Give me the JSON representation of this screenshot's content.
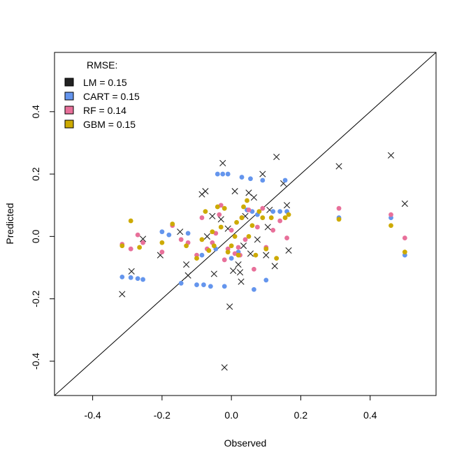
{
  "chart_data": {
    "type": "scatter",
    "title": "",
    "xlabel": "Observed",
    "ylabel": "Predicted",
    "xlim": [
      -0.51,
      0.59
    ],
    "ylim": [
      -0.51,
      0.59
    ],
    "x_ticks": [
      -0.4,
      -0.2,
      0.0,
      0.2,
      0.4
    ],
    "x_tick_labels": [
      "-0.4",
      "-0.2",
      "0.0",
      "0.2",
      "0.4"
    ],
    "y_ticks": [
      -0.4,
      -0.2,
      0.0,
      0.2,
      0.4
    ],
    "y_tick_labels": [
      "-0.4",
      "-0.2",
      "0.0",
      "0.2",
      "0.4"
    ],
    "reference_line": "y = x",
    "legend": {
      "title": "RMSE:",
      "placement": "top-left",
      "entries": [
        {
          "label": "LM =  0.15",
          "color": "#222222"
        },
        {
          "label": "CART =  0.15",
          "color": "#6495ED"
        },
        {
          "label": "RF =  0.14",
          "color": "#E8709A"
        },
        {
          "label": "GBM =  0.15",
          "color": "#CDAA00"
        }
      ]
    },
    "series": [
      {
        "name": "LM",
        "marker": "x",
        "color": "#222222",
        "points": [
          [
            -0.315,
            -0.185
          ],
          [
            -0.288,
            -0.112
          ],
          [
            -0.255,
            -0.008
          ],
          [
            -0.205,
            -0.06
          ],
          [
            -0.148,
            0.015
          ],
          [
            -0.13,
            -0.09
          ],
          [
            -0.125,
            -0.125
          ],
          [
            -0.085,
            0.135
          ],
          [
            -0.075,
            0.145
          ],
          [
            -0.055,
            0.065
          ],
          [
            -0.05,
            -0.12
          ],
          [
            -0.03,
            0.055
          ],
          [
            -0.025,
            0.235
          ],
          [
            -0.02,
            -0.42
          ],
          [
            -0.01,
            0.025
          ],
          [
            -0.005,
            -0.225
          ],
          [
            0.005,
            -0.11
          ],
          [
            0.01,
            0.145
          ],
          [
            0.025,
            -0.115
          ],
          [
            0.028,
            -0.145
          ],
          [
            0.035,
            -0.03
          ],
          [
            0.04,
            0.065
          ],
          [
            0.05,
            0.14
          ],
          [
            0.055,
            -0.055
          ],
          [
            0.065,
            0.125
          ],
          [
            0.09,
            0.2
          ],
          [
            0.1,
            -0.06
          ],
          [
            0.11,
            0.085
          ],
          [
            0.125,
            -0.095
          ],
          [
            0.13,
            0.255
          ],
          [
            0.15,
            0.17
          ],
          [
            0.16,
            0.1
          ],
          [
            0.165,
            -0.045
          ],
          [
            0.31,
            0.225
          ],
          [
            0.46,
            0.26
          ],
          [
            0.5,
            0.105
          ],
          [
            -0.07,
            0.0
          ],
          [
            0.02,
            -0.09
          ],
          [
            0.075,
            -0.01
          ],
          [
            0.105,
            0.03
          ]
        ]
      },
      {
        "name": "CART",
        "marker": "dot",
        "color": "#6495ED",
        "points": [
          [
            -0.315,
            -0.13
          ],
          [
            -0.29,
            -0.132
          ],
          [
            -0.27,
            -0.135
          ],
          [
            -0.255,
            -0.138
          ],
          [
            -0.2,
            0.015
          ],
          [
            -0.18,
            0.005
          ],
          [
            -0.145,
            -0.15
          ],
          [
            -0.125,
            0.01
          ],
          [
            -0.1,
            -0.155
          ],
          [
            -0.08,
            -0.155
          ],
          [
            -0.06,
            -0.16
          ],
          [
            -0.085,
            -0.06
          ],
          [
            -0.04,
            0.2
          ],
          [
            -0.025,
            0.2
          ],
          [
            -0.01,
            0.2
          ],
          [
            -0.02,
            -0.16
          ],
          [
            0.0,
            -0.07
          ],
          [
            0.03,
            0.19
          ],
          [
            0.055,
            0.185
          ],
          [
            0.06,
            0.08
          ],
          [
            0.065,
            -0.17
          ],
          [
            0.075,
            0.07
          ],
          [
            0.09,
            0.18
          ],
          [
            0.1,
            -0.14
          ],
          [
            0.12,
            0.08
          ],
          [
            0.14,
            0.08
          ],
          [
            0.155,
            0.18
          ],
          [
            0.16,
            0.08
          ],
          [
            0.31,
            0.06
          ],
          [
            0.46,
            0.06
          ],
          [
            0.5,
            -0.06
          ],
          [
            -0.045,
            -0.04
          ],
          [
            0.02,
            -0.05
          ],
          [
            0.045,
            0.085
          ]
        ]
      },
      {
        "name": "RF",
        "marker": "dot",
        "color": "#E8709A",
        "points": [
          [
            -0.315,
            -0.025
          ],
          [
            -0.29,
            -0.04
          ],
          [
            -0.27,
            0.005
          ],
          [
            -0.255,
            -0.02
          ],
          [
            -0.2,
            -0.05
          ],
          [
            -0.17,
            0.035
          ],
          [
            -0.145,
            -0.01
          ],
          [
            -0.125,
            -0.02
          ],
          [
            -0.1,
            -0.06
          ],
          [
            -0.085,
            0.06
          ],
          [
            -0.07,
            -0.04
          ],
          [
            -0.055,
            -0.02
          ],
          [
            -0.045,
            0.01
          ],
          [
            -0.03,
            0.1
          ],
          [
            -0.02,
            -0.075
          ],
          [
            -0.01,
            -0.04
          ],
          [
            0.0,
            0.02
          ],
          [
            0.01,
            -0.055
          ],
          [
            0.02,
            -0.035
          ],
          [
            0.03,
            0.06
          ],
          [
            0.04,
            -0.01
          ],
          [
            0.05,
            0.085
          ],
          [
            0.065,
            -0.105
          ],
          [
            0.075,
            0.03
          ],
          [
            0.09,
            0.09
          ],
          [
            0.1,
            -0.035
          ],
          [
            0.12,
            0.02
          ],
          [
            0.14,
            0.05
          ],
          [
            0.16,
            -0.005
          ],
          [
            0.31,
            0.09
          ],
          [
            0.46,
            0.07
          ],
          [
            0.5,
            -0.005
          ],
          [
            -0.035,
            0.07
          ],
          [
            0.025,
            -0.06
          ]
        ]
      },
      {
        "name": "GBM",
        "marker": "dot",
        "color": "#CDAA00",
        "points": [
          [
            -0.315,
            -0.03
          ],
          [
            -0.29,
            0.05
          ],
          [
            -0.265,
            -0.035
          ],
          [
            -0.2,
            -0.02
          ],
          [
            -0.17,
            0.04
          ],
          [
            -0.13,
            -0.03
          ],
          [
            -0.1,
            -0.07
          ],
          [
            -0.085,
            -0.01
          ],
          [
            -0.075,
            0.08
          ],
          [
            -0.065,
            -0.045
          ],
          [
            -0.05,
            -0.03
          ],
          [
            -0.04,
            0.095
          ],
          [
            -0.03,
            0.03
          ],
          [
            -0.02,
            0.09
          ],
          [
            -0.01,
            -0.05
          ],
          [
            0.0,
            -0.03
          ],
          [
            0.01,
            0.0
          ],
          [
            0.02,
            -0.06
          ],
          [
            0.03,
            0.06
          ],
          [
            0.035,
            0.095
          ],
          [
            0.045,
            0.115
          ],
          [
            0.06,
            0.035
          ],
          [
            0.07,
            -0.06
          ],
          [
            0.08,
            0.08
          ],
          [
            0.09,
            0.06
          ],
          [
            0.1,
            -0.04
          ],
          [
            0.115,
            0.06
          ],
          [
            0.13,
            -0.07
          ],
          [
            0.155,
            0.06
          ],
          [
            0.165,
            0.07
          ],
          [
            0.31,
            0.055
          ],
          [
            0.46,
            0.035
          ],
          [
            0.5,
            -0.05
          ],
          [
            -0.055,
            0.015
          ],
          [
            0.015,
            0.045
          ],
          [
            0.05,
            0.0
          ]
        ]
      }
    ]
  }
}
